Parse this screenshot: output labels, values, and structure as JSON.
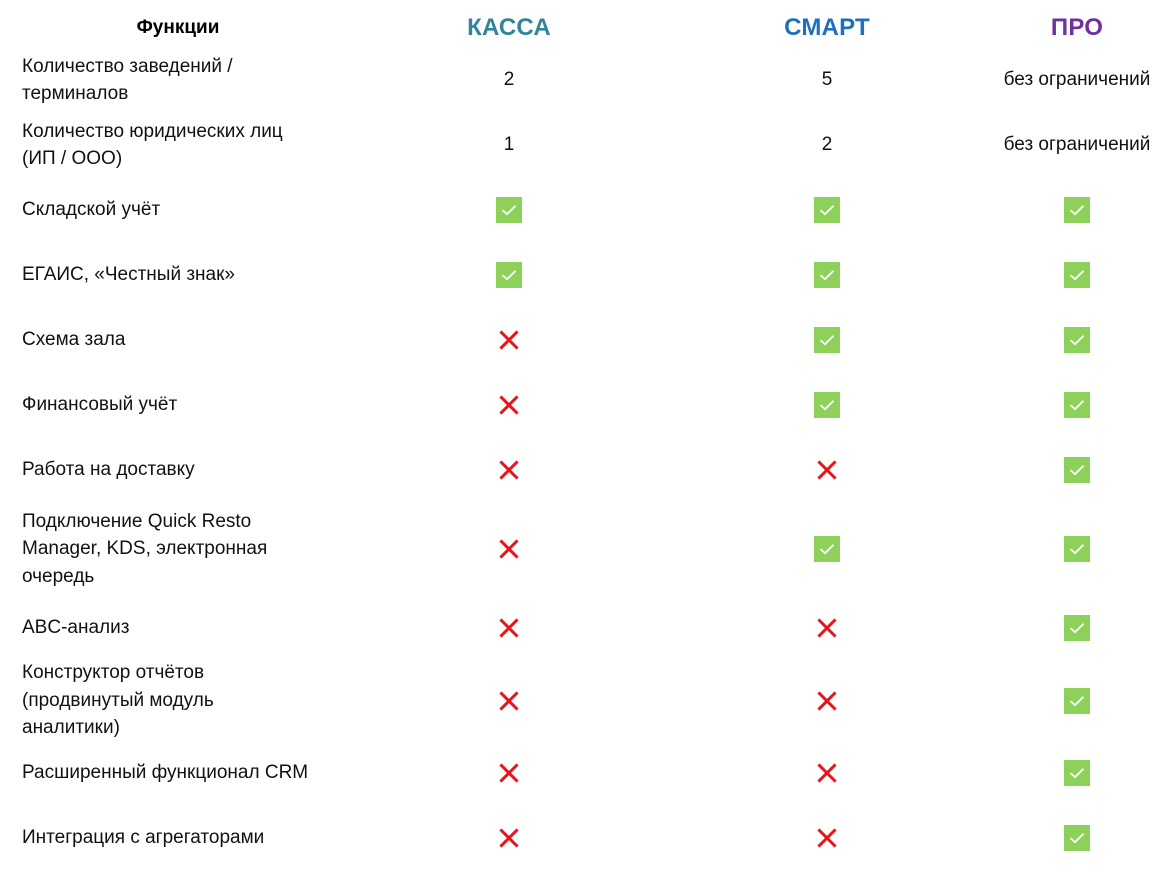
{
  "header": {
    "feature_label": "Функции",
    "plans": [
      {
        "label": "КАССА",
        "color": "#31849b"
      },
      {
        "label": "СМАРТ",
        "color": "#1f6fbf"
      },
      {
        "label": "ПРО",
        "color": "#7030a0"
      }
    ]
  },
  "colors": {
    "check_bg": "#8ed15a",
    "check_mark": "#ffffff",
    "cross": "#e8141c"
  },
  "rows": [
    {
      "feature": "Количество заведений /\nтерминалов",
      "values": [
        "2",
        "5",
        "без ограничений"
      ]
    },
    {
      "feature": "Количество юридических лиц\n(ИП / ООО)",
      "values": [
        "1",
        "2",
        "без ограничений"
      ]
    },
    {
      "feature": "Складской учёт",
      "values": [
        "check-icon",
        "check-icon",
        "check-icon"
      ]
    },
    {
      "feature": "ЕГАИС, «Честный знак»",
      "values": [
        "check-icon",
        "check-icon",
        "check-icon"
      ]
    },
    {
      "feature": "Схема зала",
      "values": [
        "cross-icon",
        "check-icon",
        "check-icon"
      ]
    },
    {
      "feature": "Финансовый учёт",
      "values": [
        "cross-icon",
        "check-icon",
        "check-icon"
      ]
    },
    {
      "feature": "Работа на доставку",
      "values": [
        "cross-icon",
        "cross-icon",
        "check-icon"
      ]
    },
    {
      "feature": "Подключение Quick Resto\nManager, KDS, электронная\nочередь",
      "values": [
        "cross-icon",
        "check-icon",
        "check-icon"
      ]
    },
    {
      "feature": "ABC-анализ",
      "values": [
        "cross-icon",
        "cross-icon",
        "check-icon"
      ]
    },
    {
      "feature": "Конструктор отчётов\n(продвинутый модуль\nаналитики)",
      "values": [
        "cross-icon",
        "cross-icon",
        "check-icon"
      ]
    },
    {
      "feature": "Расширенный функционал CRM",
      "values": [
        "cross-icon",
        "cross-icon",
        "check-icon"
      ]
    },
    {
      "feature": "Интеграция с агрегаторами",
      "values": [
        "cross-icon",
        "cross-icon",
        "check-icon"
      ]
    }
  ]
}
